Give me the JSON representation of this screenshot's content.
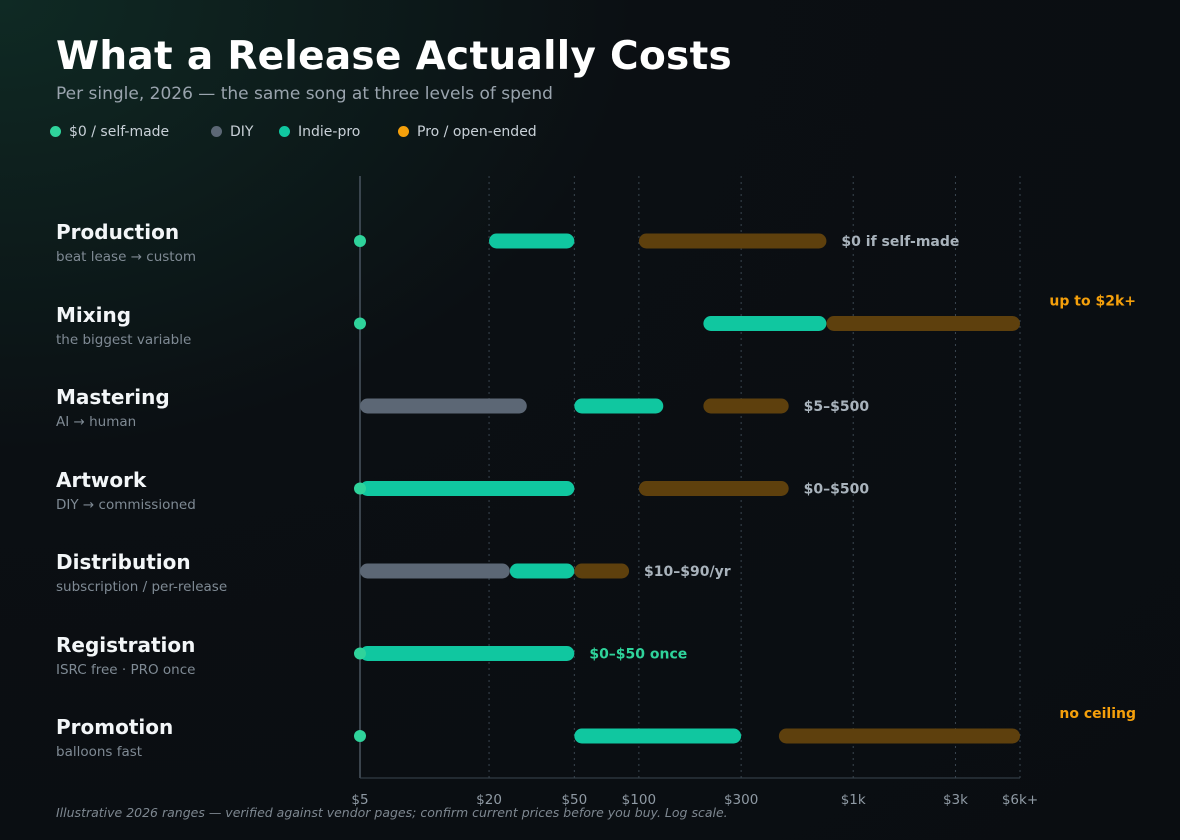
{
  "chart_data": {
    "type": "bar",
    "title": "What a Release Actually Costs",
    "subtitle": "Per single, 2026 — the same song at three levels of spend",
    "scale": "log",
    "xlim": [
      5,
      6000
    ],
    "grid": "vertical-dashed",
    "legend_position": "top-left",
    "legend": [
      {
        "key": "self",
        "label": "$0 / self-made",
        "color": "#2fd39b"
      },
      {
        "key": "diy",
        "label": "DIY",
        "color": "#5c6775"
      },
      {
        "key": "indie",
        "label": "Indie-pro",
        "color": "#10c7a0"
      },
      {
        "key": "pro",
        "label": "Pro / open-ended",
        "color": "#f5a00b"
      }
    ],
    "ticks": [
      {
        "value": 5,
        "label": "$5"
      },
      {
        "value": 20,
        "label": "$20"
      },
      {
        "value": 50,
        "label": "$50"
      },
      {
        "value": 100,
        "label": "$100"
      },
      {
        "value": 300,
        "label": "$300"
      },
      {
        "value": 1000,
        "label": "$1k"
      },
      {
        "value": 3000,
        "label": "$3k"
      },
      {
        "value": 6000,
        "label": "$6k+"
      }
    ],
    "categories": [
      {
        "name": "Production",
        "sub": "beat lease → custom",
        "ranges": [
          {
            "tier": "self",
            "from": 5,
            "to": 5
          },
          {
            "tier": "indie",
            "from": 20,
            "to": 50
          },
          {
            "tier": "pro",
            "from": 100,
            "to": 750
          }
        ],
        "annotation": {
          "text": "$0 if self-made",
          "style": "inline"
        }
      },
      {
        "name": "Mixing",
        "sub": "the biggest variable",
        "ranges": [
          {
            "tier": "self",
            "from": 5,
            "to": 5
          },
          {
            "tier": "indie",
            "from": 200,
            "to": 750
          },
          {
            "tier": "pro",
            "from": 750,
            "to": 6000
          }
        ],
        "annotation": {
          "text": "up to $2k+",
          "style": "edge"
        }
      },
      {
        "name": "Mastering",
        "sub": "AI → human",
        "ranges": [
          {
            "tier": "diy",
            "from": 5,
            "to": 30
          },
          {
            "tier": "indie",
            "from": 50,
            "to": 130
          },
          {
            "tier": "pro",
            "from": 200,
            "to": 500
          }
        ],
        "annotation": {
          "text": "$5–$500",
          "style": "inline"
        }
      },
      {
        "name": "Artwork",
        "sub": "DIY → commissioned",
        "ranges": [
          {
            "tier": "self",
            "from": 5,
            "to": 5
          },
          {
            "tier": "indie",
            "from": 5,
            "to": 50
          },
          {
            "tier": "pro",
            "from": 100,
            "to": 500
          }
        ],
        "annotation": {
          "text": "$0–$500",
          "style": "inline"
        }
      },
      {
        "name": "Distribution",
        "sub": "subscription / per-release",
        "ranges": [
          {
            "tier": "diy",
            "from": 5,
            "to": 25
          },
          {
            "tier": "indie",
            "from": 25,
            "to": 50
          },
          {
            "tier": "pro",
            "from": 50,
            "to": 90
          }
        ],
        "annotation": {
          "text": "$10–$90/yr",
          "style": "inline"
        }
      },
      {
        "name": "Registration",
        "sub": "ISRC free · PRO once",
        "ranges": [
          {
            "tier": "self",
            "from": 5,
            "to": 5
          },
          {
            "tier": "indie",
            "from": 5,
            "to": 50
          }
        ],
        "annotation": {
          "text": "$0–$50 once",
          "style": "inline-green"
        }
      },
      {
        "name": "Promotion",
        "sub": "balloons fast",
        "ranges": [
          {
            "tier": "self",
            "from": 5,
            "to": 5
          },
          {
            "tier": "indie",
            "from": 50,
            "to": 300
          },
          {
            "tier": "pro",
            "from": 450,
            "to": 6000
          }
        ],
        "annotation": {
          "text": "no ceiling",
          "style": "edge"
        }
      }
    ],
    "footnote": "Illustrative 2026 ranges — verified against vendor pages; confirm current prices before you buy. Log scale."
  }
}
